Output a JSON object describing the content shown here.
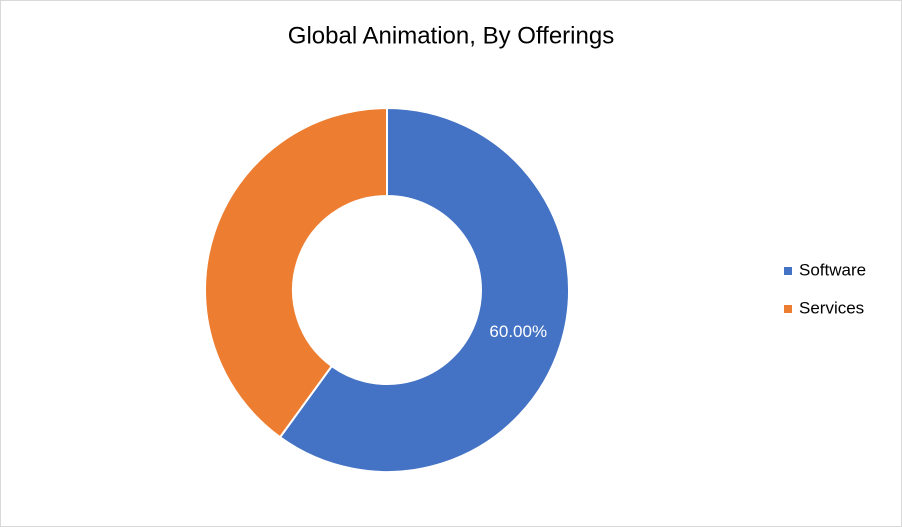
{
  "chart_data": {
    "type": "donut",
    "title": "Global Animation, By Offerings",
    "categories": [
      "Software",
      "Services"
    ],
    "values": [
      60,
      40
    ],
    "value_labels": [
      "60.00%",
      null
    ],
    "colors": [
      "#4472c4",
      "#ed7d31"
    ],
    "legend": "right"
  }
}
